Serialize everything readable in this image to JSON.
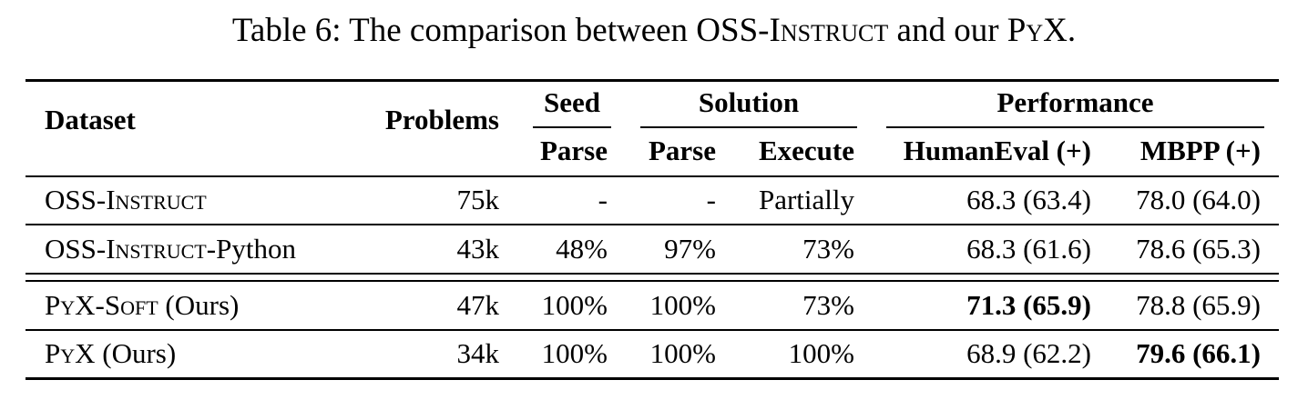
{
  "caption": {
    "prefix": "Table 6: The comparison between ",
    "oss_main": "OSS-Instruct",
    "middle": " and our ",
    "pyx_main": "PyX",
    "suffix": "."
  },
  "header": {
    "dataset": "Dataset",
    "problems": "Problems",
    "seed": "Seed",
    "solution": "Solution",
    "performance": "Performance",
    "seed_parse": "Parse",
    "solution_parse": "Parse",
    "solution_execute": "Execute",
    "humaneval": "HumanEval (+)",
    "mbpp": "MBPP (+)"
  },
  "rows": [
    {
      "name_main": "OSS-Instruct",
      "name_suffix": "",
      "problems": "75k",
      "seed_parse": "-",
      "solution_parse": "-",
      "solution_execute": "Partially",
      "humaneval": "68.3 (63.4)",
      "mbpp": "78.0 (64.0)",
      "bold": ""
    },
    {
      "name_main": "OSS-Instruct",
      "name_suffix": "-Python",
      "problems": "43k",
      "seed_parse": "48%",
      "solution_parse": "97%",
      "solution_execute": "73%",
      "humaneval": "68.3 (61.6)",
      "mbpp": "78.6 (65.3)",
      "bold": ""
    },
    {
      "name_main": "PyX-Soft",
      "name_suffix": " (Ours)",
      "problems": "47k",
      "seed_parse": "100%",
      "solution_parse": "100%",
      "solution_execute": "73%",
      "humaneval": "71.3 (65.9)",
      "mbpp": "78.8 (65.9)",
      "bold": "humaneval"
    },
    {
      "name_main": "PyX",
      "name_suffix": " (Ours)",
      "problems": "34k",
      "seed_parse": "100%",
      "solution_parse": "100%",
      "solution_execute": "100%",
      "humaneval": "68.9 (62.2)",
      "mbpp": "79.6 (66.1)",
      "bold": "mbpp"
    }
  ]
}
